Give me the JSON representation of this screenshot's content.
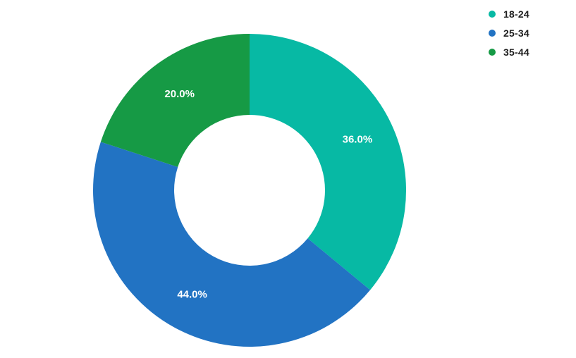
{
  "chart_data": {
    "type": "pie",
    "subtype": "donut",
    "title": "",
    "categories": [
      "18-24",
      "25-34",
      "35-44"
    ],
    "values": [
      36.0,
      44.0,
      20.0
    ],
    "labels": [
      "36.0%",
      "44.0%",
      "20.0%"
    ],
    "colors": [
      "#07B9A4",
      "#2273C3",
      "#169A45"
    ],
    "label_color": "#FFFFFF",
    "start_angle_deg": 0,
    "direction": "clockwise",
    "inner_radius_ratio": 0.48,
    "legend_position": "top-right",
    "background_color": "#FFFFFF"
  },
  "legend": {
    "items": [
      {
        "label": "18-24",
        "color": "#07B9A4"
      },
      {
        "label": "25-34",
        "color": "#2273C3"
      },
      {
        "label": "35-44",
        "color": "#169A45"
      }
    ]
  }
}
